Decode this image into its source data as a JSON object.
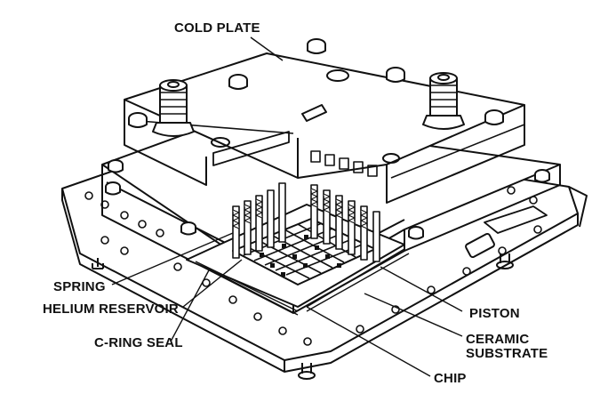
{
  "labels": {
    "cold_plate": "COLD PLATE",
    "spring": "SPRING",
    "helium_reservoir": "HELIUM RESERVOIR",
    "c_ring_seal": "C-RING SEAL",
    "piston": "PISTON",
    "ceramic": "CERAMIC",
    "substrate": "SUBSTRATE",
    "chip": "CHIP"
  },
  "colors": {
    "ink": "#111111",
    "paper": "#ffffff",
    "shade": "#1a1a1a"
  }
}
